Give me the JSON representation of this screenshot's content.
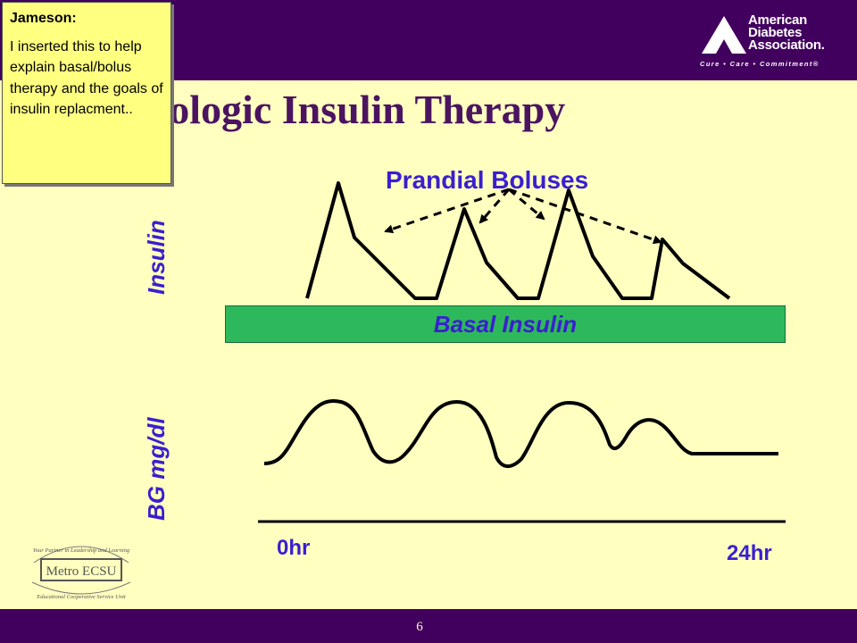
{
  "header": {
    "title": "hysiologic Insulin Therapy",
    "logo": {
      "line1": "American",
      "line2": "Diabetes",
      "line3": "Association.",
      "tagline": "Cure • Care • Commitment®"
    }
  },
  "comment": {
    "author": "Jameson:",
    "text": "I inserted this to help explain basal/bolus therapy and the goals of insulin replacment.."
  },
  "diagram": {
    "prandial_label": "Prandial Boluses",
    "basal_label": "Basal Insulin",
    "insulin_axis_label": "Insulin",
    "bg_axis_label": "BG mg/dl",
    "x_start_label": "0hr",
    "x_end_label": "24hr"
  },
  "footer": {
    "slide_number": "6",
    "logo_line1": "Your Partner in Leadership and Learning",
    "logo_line2": "Metro ECSU",
    "logo_line3": "Educational Cooperative Service Unit"
  },
  "colors": {
    "header_bg": "#42005E",
    "slide_bg": "#FFFFC0",
    "title": "#4B1460",
    "label_blue": "#3A1FD0",
    "basal_green": "#2EB85C",
    "comment_bg": "#FFFF80"
  }
}
